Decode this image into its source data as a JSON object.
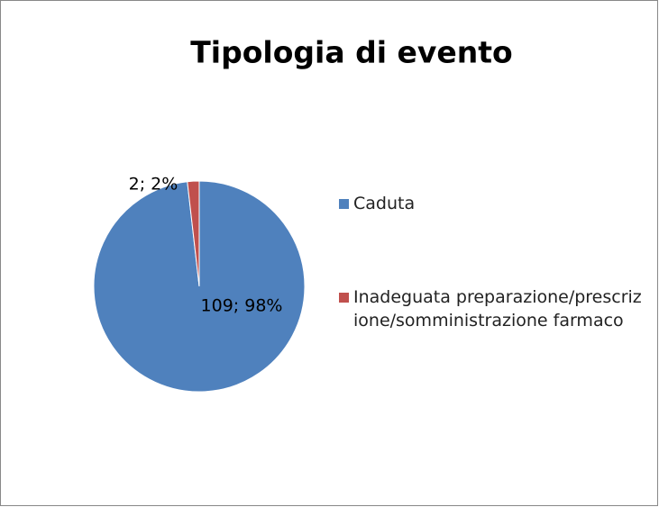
{
  "chart_data": {
    "type": "pie",
    "title": "Tipologia di evento",
    "categories": [
      "Caduta",
      "Inadeguata preparazione/prescrizione/somministrazione farmaco"
    ],
    "values": [
      109,
      2
    ],
    "value_labels": [
      "109; 98%",
      "2; 2%"
    ],
    "colors": [
      "#4f81bd",
      "#c0504d"
    ],
    "legend": "right"
  }
}
